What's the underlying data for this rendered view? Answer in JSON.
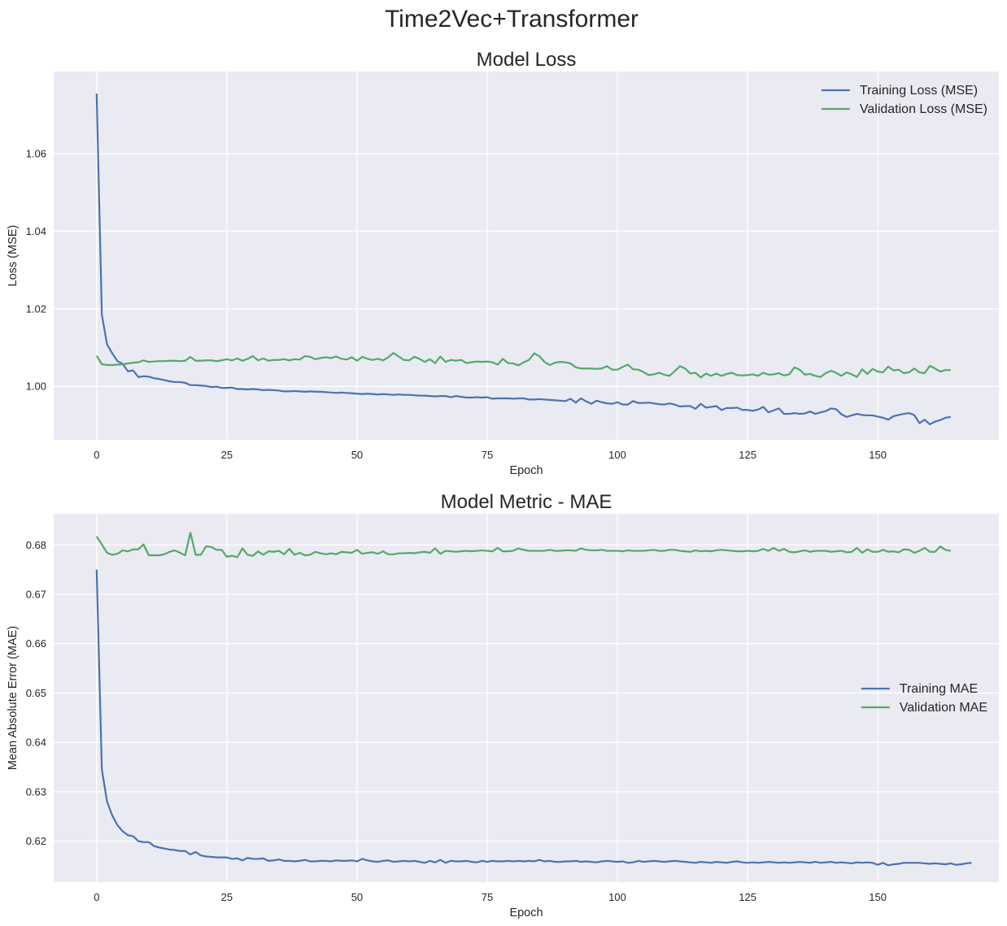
{
  "figure": {
    "suptitle": "Time2Vec+Transformer",
    "colors": {
      "training": "#4c72b0",
      "validation": "#55a868",
      "background": "#eaeaf2",
      "grid": "#ffffff"
    }
  },
  "chart_data": [
    {
      "type": "line",
      "title": "Model Loss",
      "xlabel": "Epoch",
      "ylabel": "Loss (MSE)",
      "xlim": [
        -8.25,
        173.25
      ],
      "ylim": [
        0.9862,
        1.0812
      ],
      "xticks": [
        0,
        25,
        50,
        75,
        100,
        125,
        150
      ],
      "xtick_labels": [
        "0",
        "25",
        "50",
        "75",
        "100",
        "125",
        "150"
      ],
      "yticks": [
        1.0,
        1.02,
        1.04,
        1.06
      ],
      "ytick_labels": [
        "1.00",
        "1.02",
        "1.04",
        "1.06"
      ],
      "grid": true,
      "legend_position": "upper right",
      "x": {
        "start": 0,
        "end": 164,
        "step": 1
      },
      "series": [
        {
          "name": "Training Loss (MSE)",
          "values": [
            1.0755,
            1.0185,
            1.0108,
            1.0085,
            1.0065,
            1.0058,
            1.0039,
            1.0041,
            1.0024,
            1.0026,
            1.0025,
            1.0021,
            1.0019,
            1.0016,
            1.0013,
            1.0011,
            1.0011,
            1.0009,
            1.0003,
            1.0003,
            1.0002,
            1.0001,
            0.9998,
            0.9999,
            0.9996,
            0.9996,
            0.9997,
            0.9993,
            0.9993,
            0.9992,
            0.9993,
            0.9992,
            0.999,
            0.9991,
            0.999,
            0.9989,
            0.9987,
            0.9987,
            0.9988,
            0.9987,
            0.9986,
            0.9987,
            0.9986,
            0.9986,
            0.9985,
            0.9984,
            0.9983,
            0.9984,
            0.9983,
            0.9982,
            0.9981,
            0.998,
            0.9981,
            0.998,
            0.9979,
            0.998,
            0.9979,
            0.9978,
            0.9979,
            0.9978,
            0.9978,
            0.9977,
            0.9976,
            0.9976,
            0.9975,
            0.9974,
            0.9975,
            0.9975,
            0.9972,
            0.9975,
            0.9973,
            0.9971,
            0.9971,
            0.9972,
            0.9971,
            0.9972,
            0.9968,
            0.9969,
            0.9969,
            0.9969,
            0.9968,
            0.9969,
            0.9969,
            0.9966,
            0.9966,
            0.9967,
            0.9966,
            0.9965,
            0.9964,
            0.9963,
            0.9962,
            0.9968,
            0.9958,
            0.9969,
            0.9961,
            0.9955,
            0.9963,
            0.9959,
            0.9956,
            0.9955,
            0.9959,
            0.9953,
            0.9953,
            0.9962,
            0.9957,
            0.9957,
            0.9958,
            0.9956,
            0.9954,
            0.9953,
            0.9956,
            0.9953,
            0.9948,
            0.9949,
            0.9949,
            0.9942,
            0.9955,
            0.9945,
            0.9947,
            0.9949,
            0.9939,
            0.9944,
            0.9944,
            0.9945,
            0.9939,
            0.9939,
            0.9937,
            0.994,
            0.9947,
            0.9933,
            0.9938,
            0.9943,
            0.9929,
            0.9929,
            0.9931,
            0.9929,
            0.993,
            0.9935,
            0.9929,
            0.9933,
            0.9936,
            0.9943,
            0.9941,
            0.9928,
            0.9921,
            0.9925,
            0.9929,
            0.9926,
            0.9925,
            0.9925,
            0.9922,
            0.9919,
            0.9914,
            0.9923,
            0.9926,
            0.9929,
            0.9931,
            0.9926,
            0.9905,
            0.9914,
            0.9902,
            0.9909,
            0.9913,
            0.9919,
            0.9921
          ]
        },
        {
          "name": "Validation Loss (MSE)",
          "values": [
            1.0079,
            1.0057,
            1.0055,
            1.0055,
            1.0056,
            1.0057,
            1.0059,
            1.0061,
            1.0062,
            1.0067,
            1.0063,
            1.0064,
            1.0065,
            1.0065,
            1.0066,
            1.0066,
            1.0065,
            1.0066,
            1.0076,
            1.0066,
            1.0066,
            1.0067,
            1.0067,
            1.0065,
            1.0067,
            1.007,
            1.0067,
            1.0072,
            1.0066,
            1.0071,
            1.0078,
            1.0067,
            1.0072,
            1.0066,
            1.0068,
            1.0068,
            1.007,
            1.0067,
            1.007,
            1.0069,
            1.0078,
            1.0076,
            1.007,
            1.0073,
            1.0075,
            1.0073,
            1.0077,
            1.0071,
            1.0069,
            1.0075,
            1.0066,
            1.0076,
            1.0071,
            1.0068,
            1.0071,
            1.0067,
            1.0075,
            1.0086,
            1.0077,
            1.0068,
            1.0067,
            1.0076,
            1.0071,
            1.0063,
            1.007,
            1.006,
            1.0077,
            1.0063,
            1.0068,
            1.0066,
            1.0068,
            1.006,
            1.0062,
            1.0064,
            1.0063,
            1.0064,
            1.0062,
            1.0056,
            1.0071,
            1.006,
            1.0059,
            1.0054,
            1.0062,
            1.0068,
            1.0085,
            1.0078,
            1.0063,
            1.0055,
            1.0061,
            1.0063,
            1.0062,
            1.0059,
            1.0049,
            1.0046,
            1.0046,
            1.0046,
            1.0045,
            1.0046,
            1.0052,
            1.0043,
            1.0043,
            1.005,
            1.0056,
            1.0044,
            1.0043,
            1.0037,
            1.0029,
            1.0031,
            1.0035,
            1.003,
            1.0027,
            1.0039,
            1.0052,
            1.0046,
            1.0033,
            1.0035,
            1.0023,
            1.0033,
            1.0027,
            1.0033,
            1.0027,
            1.0032,
            1.0035,
            1.0029,
            1.0028,
            1.0029,
            1.0031,
            1.0027,
            1.0035,
            1.003,
            1.0031,
            1.0034,
            1.0028,
            1.0031,
            1.0049,
            1.0043,
            1.003,
            1.0032,
            1.0027,
            1.0024,
            1.0034,
            1.004,
            1.0035,
            1.0027,
            1.0036,
            1.0031,
            1.0024,
            1.0044,
            1.0032,
            1.0045,
            1.0038,
            1.0036,
            1.0051,
            1.0041,
            1.0043,
            1.0034,
            1.0036,
            1.0046,
            1.0036,
            1.0034,
            1.0053,
            1.0046,
            1.0038,
            1.0042,
            1.0042
          ]
        }
      ]
    },
    {
      "type": "line",
      "title": "Model Metric - MAE",
      "xlabel": "Epoch",
      "ylabel": "Mean Absolute Error (MAE)",
      "xlim": [
        -8.25,
        173.25
      ],
      "ylim": [
        0.6117,
        0.6863
      ],
      "xticks": [
        0,
        25,
        50,
        75,
        100,
        125,
        150
      ],
      "xtick_labels": [
        "0",
        "25",
        "50",
        "75",
        "100",
        "125",
        "150"
      ],
      "yticks": [
        0.62,
        0.63,
        0.64,
        0.65,
        0.66,
        0.67,
        0.68
      ],
      "ytick_labels": [
        "0.62",
        "0.63",
        "0.64",
        "0.65",
        "0.66",
        "0.67",
        "0.68"
      ],
      "grid": true,
      "legend_position": "center right",
      "x": {
        "start": 0,
        "end": 164,
        "step": 1
      },
      "series": [
        {
          "name": "Training MAE",
          "values": [
            0.675,
            0.6345,
            0.628,
            0.6252,
            0.6232,
            0.622,
            0.6212,
            0.621,
            0.62,
            0.6198,
            0.6198,
            0.619,
            0.6187,
            0.6185,
            0.6183,
            0.6182,
            0.618,
            0.618,
            0.6173,
            0.6178,
            0.6171,
            0.6169,
            0.6168,
            0.6167,
            0.6167,
            0.6167,
            0.6164,
            0.6165,
            0.6161,
            0.6166,
            0.6164,
            0.6164,
            0.6165,
            0.616,
            0.6161,
            0.6163,
            0.616,
            0.616,
            0.6159,
            0.616,
            0.6162,
            0.6159,
            0.6159,
            0.616,
            0.616,
            0.6159,
            0.6161,
            0.616,
            0.616,
            0.6161,
            0.6159,
            0.6164,
            0.6161,
            0.6159,
            0.6158,
            0.616,
            0.6161,
            0.6158,
            0.6159,
            0.616,
            0.6159,
            0.616,
            0.6158,
            0.6156,
            0.616,
            0.6157,
            0.6162,
            0.6156,
            0.616,
            0.6159,
            0.6159,
            0.616,
            0.6158,
            0.6157,
            0.616,
            0.6158,
            0.616,
            0.6159,
            0.6159,
            0.616,
            0.6159,
            0.616,
            0.6159,
            0.616,
            0.6159,
            0.6162,
            0.6159,
            0.616,
            0.6158,
            0.6158,
            0.6159,
            0.6159,
            0.616,
            0.6158,
            0.6159,
            0.6158,
            0.6157,
            0.6159,
            0.616,
            0.6159,
            0.6158,
            0.6159,
            0.6156,
            0.6157,
            0.616,
            0.6158,
            0.6159,
            0.616,
            0.6159,
            0.6158,
            0.6159,
            0.616,
            0.6159,
            0.6158,
            0.6157,
            0.6156,
            0.6158,
            0.6157,
            0.6156,
            0.6158,
            0.6157,
            0.6156,
            0.6158,
            0.6159,
            0.6157,
            0.6156,
            0.6157,
            0.6156,
            0.6157,
            0.6158,
            0.6157,
            0.6156,
            0.6157,
            0.6156,
            0.6157,
            0.6158,
            0.6157,
            0.6156,
            0.6158,
            0.6156,
            0.6157,
            0.6158,
            0.6156,
            0.6157,
            0.6156,
            0.6155,
            0.6157,
            0.6156,
            0.6157,
            0.6156,
            0.6152,
            0.6156,
            0.6151,
            0.6153,
            0.6154,
            0.6156,
            0.6156,
            0.6156,
            0.6156,
            0.6155,
            0.6154,
            0.6155,
            0.6154,
            0.6153,
            0.6155,
            0.6152,
            0.6153,
            0.6155,
            0.6156
          ]
        },
        {
          "name": "Validation MAE",
          "values": [
            0.6817,
            0.6801,
            0.6784,
            0.678,
            0.6782,
            0.6789,
            0.6787,
            0.6791,
            0.6791,
            0.6801,
            0.6779,
            0.6779,
            0.6779,
            0.6781,
            0.6786,
            0.6789,
            0.6784,
            0.6779,
            0.6825,
            0.678,
            0.678,
            0.6797,
            0.6796,
            0.679,
            0.679,
            0.6776,
            0.6778,
            0.6775,
            0.6793,
            0.678,
            0.6778,
            0.6787,
            0.678,
            0.6787,
            0.6786,
            0.6788,
            0.6781,
            0.6792,
            0.678,
            0.6784,
            0.6779,
            0.678,
            0.6786,
            0.6783,
            0.6781,
            0.6783,
            0.6781,
            0.6786,
            0.6785,
            0.6784,
            0.679,
            0.6782,
            0.6784,
            0.6785,
            0.6782,
            0.6787,
            0.6781,
            0.6781,
            0.6783,
            0.6783,
            0.6784,
            0.6783,
            0.6785,
            0.6786,
            0.6784,
            0.6793,
            0.6782,
            0.6788,
            0.6787,
            0.6786,
            0.6787,
            0.6788,
            0.6787,
            0.6788,
            0.6789,
            0.6788,
            0.6787,
            0.6794,
            0.6787,
            0.6787,
            0.6788,
            0.6793,
            0.679,
            0.6788,
            0.6788,
            0.6788,
            0.6788,
            0.679,
            0.6788,
            0.6788,
            0.6789,
            0.6789,
            0.6788,
            0.6793,
            0.679,
            0.6789,
            0.6789,
            0.679,
            0.6788,
            0.6788,
            0.6788,
            0.6787,
            0.6789,
            0.6788,
            0.6788,
            0.6788,
            0.6789,
            0.679,
            0.6788,
            0.6788,
            0.679,
            0.679,
            0.6788,
            0.6787,
            0.6786,
            0.6789,
            0.6787,
            0.6788,
            0.6787,
            0.6789,
            0.679,
            0.6789,
            0.6788,
            0.6787,
            0.6787,
            0.6788,
            0.6787,
            0.6788,
            0.6792,
            0.6788,
            0.6794,
            0.6788,
            0.6792,
            0.6786,
            0.6785,
            0.6787,
            0.6789,
            0.6786,
            0.6788,
            0.6788,
            0.6788,
            0.6786,
            0.6787,
            0.6788,
            0.6785,
            0.6786,
            0.6794,
            0.6784,
            0.6791,
            0.6786,
            0.6786,
            0.679,
            0.6786,
            0.6787,
            0.6785,
            0.6791,
            0.679,
            0.6784,
            0.6788,
            0.6794,
            0.6786,
            0.6786,
            0.6797,
            0.679,
            0.6788
          ]
        }
      ]
    }
  ]
}
